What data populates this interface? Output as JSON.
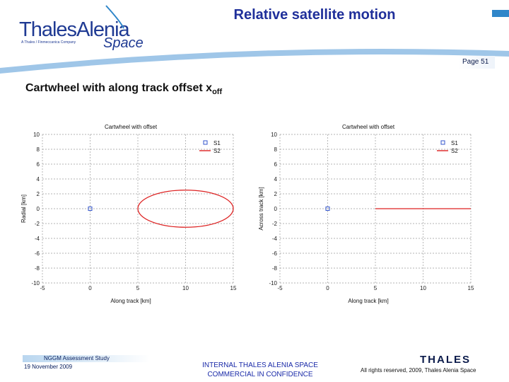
{
  "header": {
    "title": "Relative satellite motion",
    "page_number": "Page 51",
    "logo": {
      "main": "ThalesAlenia",
      "tagline": "A Thales / Finmeccanica Company",
      "space": "Space"
    }
  },
  "slide": {
    "subtitle_main": "Cartwheel with along track offset x",
    "subtitle_sub": "off"
  },
  "footer": {
    "study": "NGGM Assessment Study",
    "date": "19 November 2009",
    "internal_line1": "INTERNAL THALES ALENIA SPACE",
    "internal_line2": "COMMERCIAL IN CONFIDENCE",
    "thales": "THALES",
    "rights": "All rights reserved, 2009, Thales Alenia Space"
  },
  "chart_data": [
    {
      "type": "line",
      "title": "Cartwheel with offset",
      "xlabel": "Along track [km]",
      "ylabel": "Radial [km]",
      "xlim": [
        -5,
        15
      ],
      "ylim": [
        -10,
        10
      ],
      "xticks": [
        -5,
        0,
        5,
        10,
        15
      ],
      "yticks": [
        -10,
        -8,
        -6,
        -4,
        -2,
        0,
        2,
        4,
        6,
        8,
        10
      ],
      "grid": true,
      "legend_position": "top-right",
      "colors": {
        "S1": "#3355cc",
        "S2": "#dd2222"
      },
      "series": [
        {
          "name": "S1",
          "marker": "square",
          "points": [
            [
              0,
              0
            ]
          ]
        },
        {
          "name": "S2",
          "shape": "ellipse",
          "center": [
            10,
            0
          ],
          "x_radius": 5,
          "y_radius": 2.5
        }
      ]
    },
    {
      "type": "line",
      "title": "Cartwheel with offset",
      "xlabel": "Along track [km]",
      "ylabel": "Across track [km]",
      "xlim": [
        -5,
        15
      ],
      "ylim": [
        -10,
        10
      ],
      "xticks": [
        -5,
        0,
        5,
        10,
        15
      ],
      "yticks": [
        -10,
        -8,
        -6,
        -4,
        -2,
        0,
        2,
        4,
        6,
        8,
        10
      ],
      "grid": true,
      "legend_position": "top-right",
      "colors": {
        "S1": "#3355cc",
        "S2": "#dd2222"
      },
      "series": [
        {
          "name": "S1",
          "marker": "square",
          "points": [
            [
              0,
              0
            ]
          ]
        },
        {
          "name": "S2",
          "points": [
            [
              5,
              0
            ],
            [
              15,
              0
            ]
          ]
        }
      ]
    }
  ]
}
